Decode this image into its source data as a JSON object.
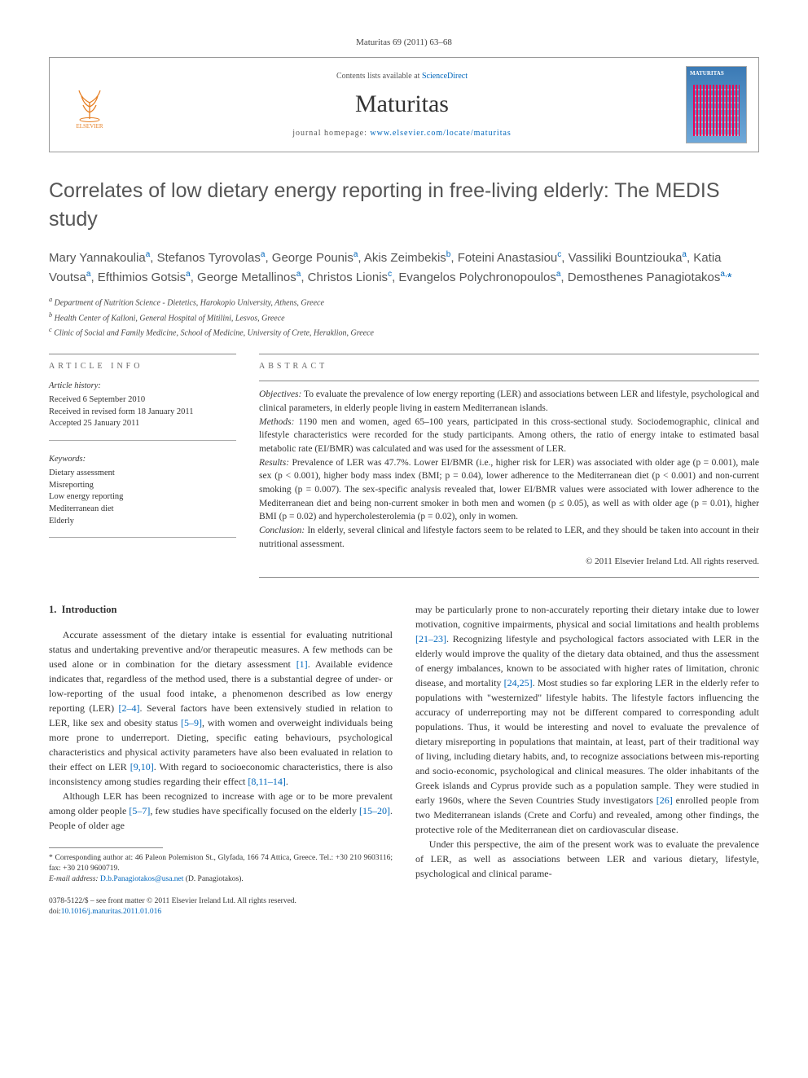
{
  "journal_ref": "Maturitas 69 (2011) 63–68",
  "header": {
    "contents_prefix": "Contents lists available at ",
    "contents_link": "ScienceDirect",
    "journal_name": "Maturitas",
    "homepage_prefix": "journal homepage: ",
    "homepage_url": "www.elsevier.com/locate/maturitas",
    "publisher": "ELSEVIER"
  },
  "title": "Correlates of low dietary energy reporting in free-living elderly: The MEDIS study",
  "authors_html": "Mary Yannakoulia<sup>a</sup>, Stefanos Tyrovolas<sup>a</sup>, George Pounis<sup>a</sup>, Akis Zeimbekis<sup>b</sup>, Foteini Anastasiou<sup>c</sup>, Vassiliki Bountziouka<sup>a</sup>, Katia Voutsa<sup>a</sup>, Efthimios Gotsis<sup>a</sup>, George Metallinos<sup>a</sup>, Christos Lionis<sup>c</sup>, Evangelos Polychronopoulos<sup>a</sup>, Demosthenes Panagiotakos<sup>a,</sup><span class='star'>*</span>",
  "affiliations": [
    "a Department of Nutrition Science - Dietetics, Harokopio University, Athens, Greece",
    "b Health Center of Kalloni, General Hospital of Mitilini, Lesvos, Greece",
    "c Clinic of Social and Family Medicine, School of Medicine, University of Crete, Heraklion, Greece"
  ],
  "article_info": {
    "header": "ARTICLE INFO",
    "history_title": "Article history:",
    "history_lines": [
      "Received 6 September 2010",
      "Received in revised form 18 January 2011",
      "Accepted 25 January 2011"
    ],
    "keywords_title": "Keywords:",
    "keywords": [
      "Dietary assessment",
      "Misreporting",
      "Low energy reporting",
      "Mediterranean diet",
      "Elderly"
    ]
  },
  "abstract": {
    "header": "ABSTRACT",
    "objectives_label": "Objectives:",
    "objectives": " To evaluate the prevalence of low energy reporting (LER) and associations between LER and lifestyle, psychological and clinical parameters, in elderly people living in eastern Mediterranean islands.",
    "methods_label": "Methods:",
    "methods": " 1190 men and women, aged 65–100 years, participated in this cross-sectional study. Sociodemographic, clinical and lifestyle characteristics were recorded for the study participants. Among others, the ratio of energy intake to estimated basal metabolic rate (EI/BMR) was calculated and was used for the assessment of LER.",
    "results_label": "Results:",
    "results": " Prevalence of LER was 47.7%. Lower EI/BMR (i.e., higher risk for LER) was associated with older age (p = 0.001), male sex (p < 0.001), higher body mass index (BMI; p = 0.04), lower adherence to the Mediterranean diet (p < 0.001) and non-current smoking (p = 0.007). The sex-specific analysis revealed that, lower EI/BMR values were associated with lower adherence to the Mediterranean diet and being non-current smoker in both men and women (p ≤ 0.05), as well as with older age (p = 0.01), higher BMI (p = 0.02) and hypercholesterolemia (p = 0.02), only in women.",
    "conclusion_label": "Conclusion:",
    "conclusion": " In elderly, several clinical and lifestyle factors seem to be related to LER, and they should be taken into account in their nutritional assessment.",
    "copyright": "© 2011 Elsevier Ireland Ltd. All rights reserved."
  },
  "body": {
    "section_number": "1.",
    "section_title": "Introduction",
    "p1": "Accurate assessment of the dietary intake is essential for evaluating nutritional status and undertaking preventive and/or therapeutic measures. A few methods can be used alone or in combination for the dietary assessment [1]. Available evidence indicates that, regardless of the method used, there is a substantial degree of under- or low-reporting of the usual food intake, a phenomenon described as low energy reporting (LER) [2–4]. Several factors have been extensively studied in relation to LER, like sex and obesity status [5–9], with women and overweight individuals being more prone to underreport. Dieting, specific eating behaviours, psychological characteristics and physical activity parameters have also been evaluated in relation to their effect on LER [9,10]. With regard to socioeconomic characteristics, there is also inconsistency among studies regarding their effect [8,11–14].",
    "p2": "Although LER has been recognized to increase with age or to be more prevalent among older people [5–7], few studies have specifically focused on the elderly [15–20]. People of older age",
    "p3": "may be particularly prone to non-accurately reporting their dietary intake due to lower motivation, cognitive impairments, physical and social limitations and health problems [21–23]. Recognizing lifestyle and psychological factors associated with LER in the elderly would improve the quality of the dietary data obtained, and thus the assessment of energy imbalances, known to be associated with higher rates of limitation, chronic disease, and mortality [24,25]. Most studies so far exploring LER in the elderly refer to populations with \"westernized\" lifestyle habits. The lifestyle factors influencing the accuracy of underreporting may not be different compared to corresponding adult populations. Thus, it would be interesting and novel to evaluate the prevalence of dietary misreporting in populations that maintain, at least, part of their traditional way of living, including dietary habits, and, to recognize associations between mis-reporting and socio-economic, psychological and clinical measures. The older inhabitants of the Greek islands and Cyprus provide such as a population sample. They were studied in early 1960s, where the Seven Countries Study investigators [26] enrolled people from two Mediterranean islands (Crete and Corfu) and revealed, among other findings, the protective role of the Mediterranean diet on cardiovascular disease.",
    "p4": "Under this perspective, the aim of the present work was to evaluate the prevalence of LER, as well as associations between LER and various dietary, lifestyle, psychological and clinical parame-"
  },
  "footnote": {
    "corresponding": "* Corresponding author at: 46 Paleon Polemiston St., Glyfada, 166 74 Attica, Greece. Tel.: +30 210 9603116; fax: +30 210 9600719.",
    "email_label": "E-mail address:",
    "email": "D.b.Panagiotakos@usa.net",
    "email_suffix": " (D. Panagiotakos)."
  },
  "footer": {
    "issn": "0378-5122/$ – see front matter © 2011 Elsevier Ireland Ltd. All rights reserved.",
    "doi_label": "doi:",
    "doi": "10.1016/j.maturitas.2011.01.016"
  },
  "colors": {
    "link": "#0066bb",
    "rule": "#888888",
    "text": "#333333",
    "elsevier": "#e67e22"
  }
}
